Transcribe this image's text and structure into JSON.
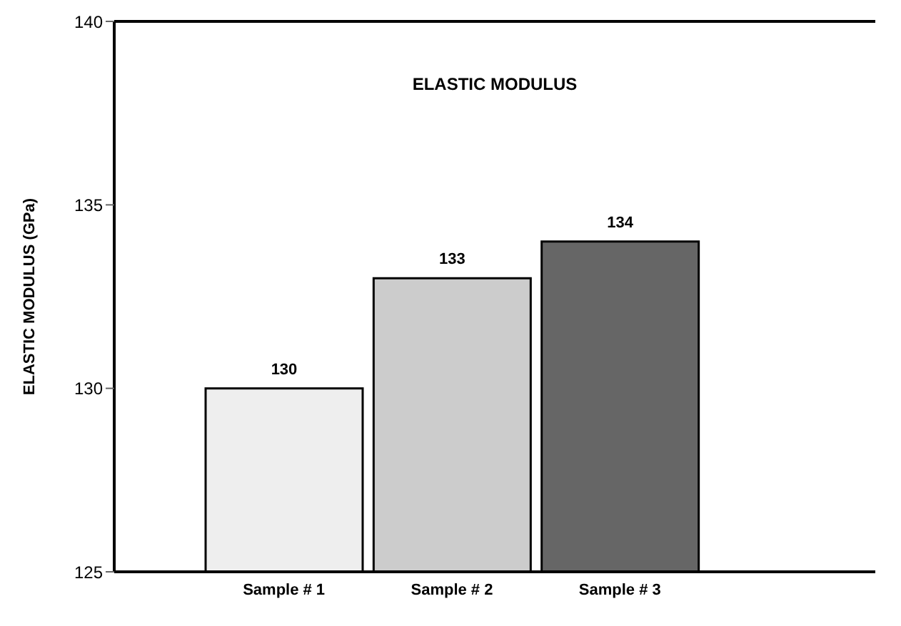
{
  "chart_data": {
    "type": "bar",
    "title": "ELASTIC MODULUS",
    "ylabel": "ELASTIC MODULUS (GPa)",
    "categories": [
      "Sample # 1",
      "Sample # 2",
      "Sample # 3"
    ],
    "values": [
      130,
      133,
      134
    ],
    "colors": [
      "#eeeeee",
      "#cccccc",
      "#666666"
    ],
    "ylim": [
      125,
      140
    ],
    "yticks": [
      125,
      130,
      135,
      140
    ],
    "data_labels": true,
    "grid": false,
    "legend": false
  }
}
